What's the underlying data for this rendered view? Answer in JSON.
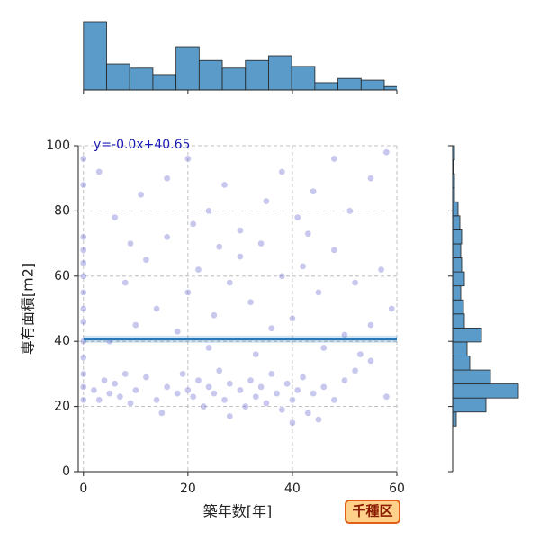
{
  "chart_data": [
    {
      "type": "scatter",
      "x_label": "築年数[年]",
      "y_label": "専有面積[m2]",
      "xlim": [
        -1,
        60
      ],
      "ylim": [
        0,
        100
      ],
      "xticks": [
        0,
        20,
        40,
        60
      ],
      "yticks": [
        0,
        20,
        40,
        60,
        80,
        100
      ],
      "grid": true,
      "color": "#4a4ac8",
      "regression": {
        "label": "y=-0.0x+40.65",
        "slope": 0,
        "intercept": 40.65,
        "color": "#2a78b8"
      },
      "annotation": "千種区",
      "x": [
        0,
        0,
        0,
        0,
        0,
        0,
        0,
        0,
        0,
        0,
        0,
        0,
        0,
        0,
        2,
        3,
        4,
        5,
        6,
        7,
        8,
        9,
        10,
        12,
        14,
        16,
        18,
        19,
        20,
        21,
        22,
        23,
        24,
        25,
        26,
        27,
        28,
        30,
        31,
        32,
        33,
        34,
        35,
        36,
        37,
        38,
        39,
        40,
        41,
        42,
        43,
        44,
        46,
        48,
        50,
        52,
        55,
        58,
        15,
        28,
        45,
        40,
        5,
        10,
        14,
        18,
        20,
        22,
        25,
        28,
        30,
        32,
        34,
        36,
        38,
        40,
        42,
        45,
        48,
        50,
        52,
        55,
        57,
        59,
        8,
        12,
        16,
        24,
        33,
        46,
        53,
        6,
        11,
        16,
        20,
        21,
        24,
        27,
        30,
        35,
        38,
        41,
        44,
        48,
        51,
        55,
        58,
        3,
        9,
        26,
        43
      ],
      "y": [
        72,
        68,
        64,
        60,
        55,
        50,
        46,
        40,
        35,
        30,
        26,
        22,
        88,
        96,
        25,
        22,
        28,
        24,
        27,
        23,
        30,
        21,
        25,
        29,
        22,
        26,
        24,
        30,
        25,
        23,
        28,
        20,
        26,
        24,
        31,
        22,
        27,
        25,
        20,
        28,
        23,
        26,
        21,
        30,
        24,
        19,
        27,
        22,
        25,
        29,
        18,
        24,
        26,
        22,
        28,
        31,
        34,
        23,
        18,
        17,
        16,
        15,
        40,
        45,
        50,
        43,
        55,
        62,
        48,
        58,
        66,
        52,
        70,
        44,
        60,
        47,
        63,
        55,
        68,
        42,
        58,
        45,
        62,
        50,
        58,
        65,
        72,
        38,
        36,
        38,
        36,
        78,
        85,
        90,
        96,
        76,
        80,
        88,
        74,
        83,
        92,
        78,
        86,
        96,
        80,
        90,
        98,
        92,
        70,
        69,
        73
      ]
    },
    {
      "type": "histogram",
      "orientation": "vertical",
      "color": "#5b9bc9",
      "bins": [
        0,
        4.43,
        8.86,
        13.29,
        17.72,
        22.15,
        26.58,
        31.01,
        35.44,
        39.87,
        44.3,
        48.73,
        53.16,
        57.59,
        62.02
      ],
      "counts": [
        160,
        61,
        51,
        36,
        101,
        69,
        51,
        69,
        80,
        55,
        17,
        27,
        23,
        8
      ],
      "ylim": [
        0,
        160
      ]
    },
    {
      "type": "histogram",
      "orientation": "horizontal",
      "color": "#5b9bc9",
      "bins": [
        14,
        18.3,
        22.6,
        26.9,
        31.2,
        35.5,
        39.8,
        44.1,
        48.4,
        52.7,
        57,
        61.3,
        65.6,
        69.9,
        74.2,
        78.5,
        82.8,
        87.1,
        91.4,
        95.7,
        100
      ],
      "counts": [
        4,
        37,
        73,
        42,
        19,
        16,
        32,
        13,
        12,
        9,
        13,
        10,
        9,
        10,
        8,
        6,
        2,
        2,
        1,
        2
      ],
      "xlim": [
        0,
        73
      ]
    }
  ]
}
